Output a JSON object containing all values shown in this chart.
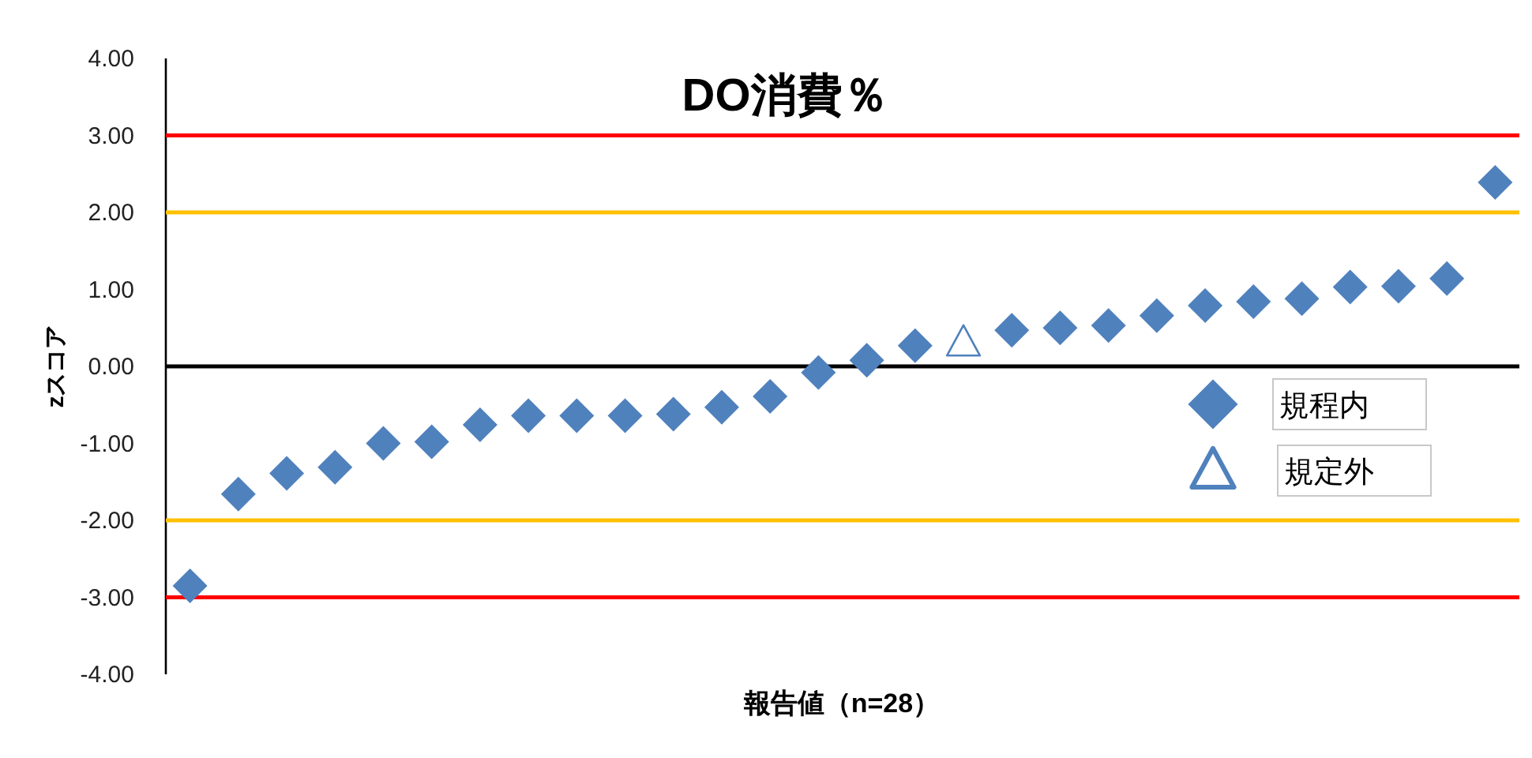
{
  "chart_data": {
    "type": "scatter",
    "title": "DO消費％",
    "xlabel": "報告値（n=28）",
    "ylabel": "zスコア",
    "categories": [
      null,
      null,
      null,
      null,
      null,
      null,
      null,
      null,
      null,
      null,
      null,
      null,
      null,
      null,
      null,
      null,
      null,
      null,
      null,
      null,
      null,
      null,
      null,
      null,
      null,
      null,
      null,
      null
    ],
    "series": [
      {
        "name": "規程内",
        "color": "#4f81bd",
        "marker": "diamond",
        "values": [
          -2.85,
          -1.66,
          -1.39,
          -1.31,
          -1.0,
          -0.98,
          -0.76,
          -0.64,
          -0.64,
          -0.64,
          -0.62,
          -0.53,
          -0.39,
          -0.08,
          0.08,
          0.27,
          null,
          0.47,
          0.5,
          0.53,
          0.66,
          0.79,
          0.84,
          0.88,
          1.03,
          1.04,
          1.14,
          2.39
        ]
      },
      {
        "name": "規定外",
        "color": "#4f81bd",
        "marker": "triangle",
        "values": [
          null,
          null,
          null,
          null,
          null,
          null,
          null,
          null,
          null,
          null,
          null,
          null,
          null,
          null,
          null,
          null,
          0.31,
          null,
          null,
          null,
          null,
          null,
          null,
          null,
          null,
          null,
          null,
          null
        ]
      }
    ],
    "ylim": [
      -4,
      4
    ],
    "yticks": [
      {
        "value": -4,
        "label": "-4.00"
      },
      {
        "value": -3,
        "label": "-3.00"
      },
      {
        "value": -2,
        "label": "-2.00"
      },
      {
        "value": -1,
        "label": "-1.00"
      },
      {
        "value": 0,
        "label": "0.00"
      },
      {
        "value": 1,
        "label": "1.00"
      },
      {
        "value": 2,
        "label": "2.00"
      },
      {
        "value": 3,
        "label": "3.00"
      },
      {
        "value": 4,
        "label": "4.00"
      }
    ],
    "ref_lines": [
      {
        "axis": "y",
        "value": 3,
        "color": "#ff0000"
      },
      {
        "axis": "y",
        "value": 2,
        "color": "#ffc000"
      },
      {
        "axis": "y",
        "value": 0,
        "color": "#000000"
      },
      {
        "axis": "y",
        "value": -2,
        "color": "#ffc000"
      },
      {
        "axis": "y",
        "value": -3,
        "color": "#ff0000"
      }
    ],
    "grid": false,
    "legend": "right"
  }
}
